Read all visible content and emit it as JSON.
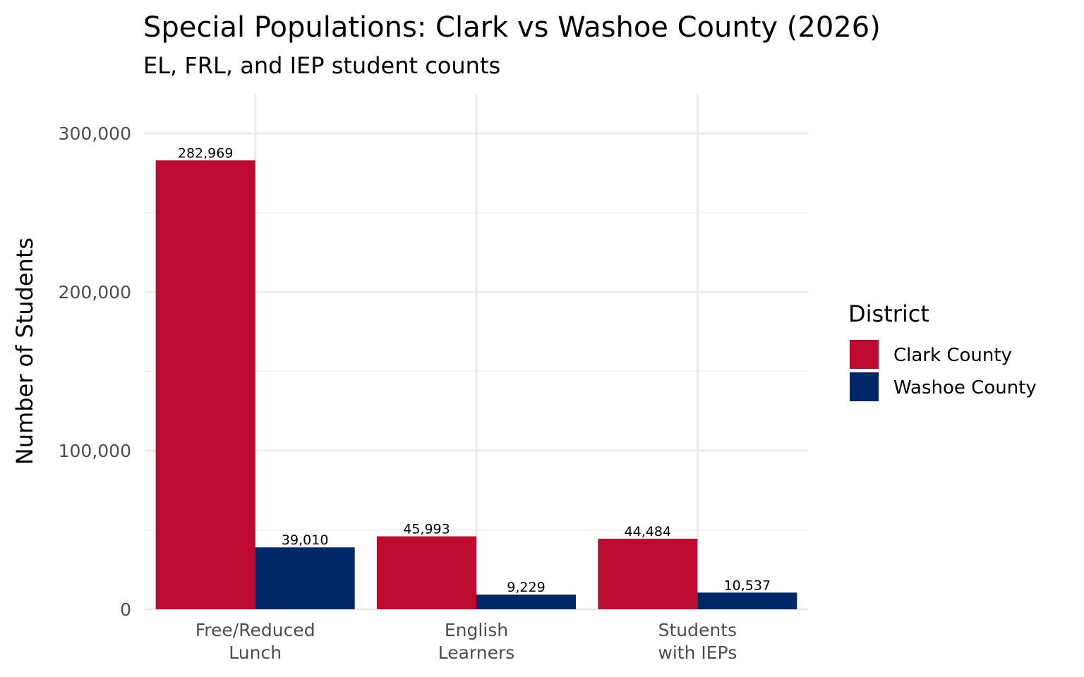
{
  "chart_data": {
    "type": "bar",
    "title": "Special Populations: Clark vs Washoe County (2026)",
    "subtitle": "EL, FRL, and IEP student counts",
    "xlabel": "",
    "ylabel": "Number of Students",
    "ylim": [
      0,
      325000
    ],
    "yticks": [
      0,
      100000,
      200000,
      300000
    ],
    "ytick_labels": [
      "0",
      "100,000",
      "200,000",
      "300,000"
    ],
    "grid": true,
    "categories": [
      [
        "Free/Reduced",
        "Lunch"
      ],
      [
        "English",
        "Learners"
      ],
      [
        "Students",
        "with IEPs"
      ]
    ],
    "series": [
      {
        "name": "Clark County",
        "color": "#BD0A2F",
        "values": [
          282969,
          45993,
          44484
        ],
        "labels": [
          "282,969",
          "45,993",
          "44,484"
        ]
      },
      {
        "name": "Washoe County",
        "color": "#002868",
        "values": [
          39010,
          9229,
          10537
        ],
        "labels": [
          "39,010",
          "9,229",
          "10,537"
        ]
      }
    ],
    "legend": {
      "title": "District",
      "position": "right"
    }
  }
}
